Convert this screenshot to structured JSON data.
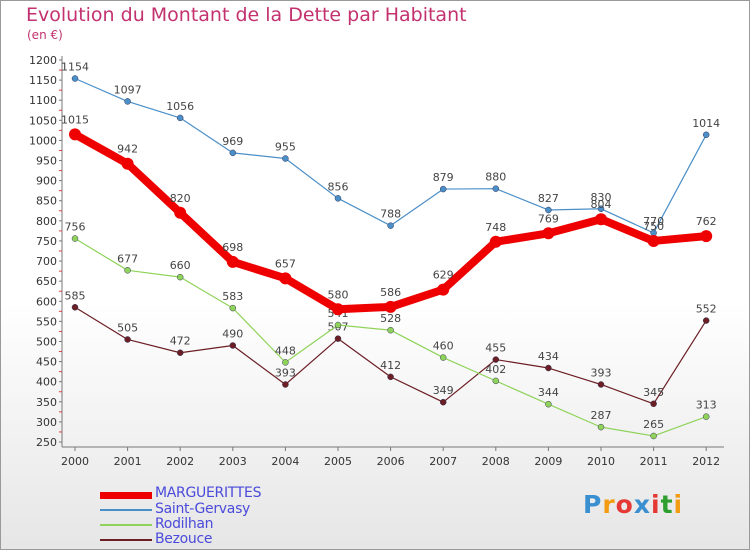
{
  "header": {
    "title": "Evolution du Montant de la Dette par Habitant",
    "unit": "(en €)"
  },
  "logo": {
    "text": "Proxiti",
    "colors": [
      "#3a8fd0",
      "#f39c12",
      "#e53935",
      "#3a8fd0",
      "#e53935",
      "#2e9e2e",
      "#f39c12"
    ]
  },
  "chart_data": {
    "type": "line",
    "title": "Evolution du Montant de la Dette par Habitant",
    "ylabel": "(en €)",
    "xlabel": "",
    "x": [
      "2000",
      "2001",
      "2002",
      "2003",
      "2004",
      "2005",
      "2006",
      "2007",
      "2008",
      "2009",
      "2010",
      "2011",
      "2012"
    ],
    "yticks": [
      250,
      300,
      350,
      400,
      450,
      500,
      550,
      600,
      650,
      700,
      750,
      800,
      850,
      900,
      950,
      1000,
      1050,
      1100,
      1150,
      1200
    ],
    "ylim": [
      250,
      1200
    ],
    "grid": false,
    "legend_position": "bottom-left",
    "series": [
      {
        "name": "MARGUERITTES",
        "color": "#ee0000",
        "values": [
          1015,
          942,
          820,
          698,
          657,
          580,
          586,
          629,
          748,
          769,
          804,
          750,
          762
        ]
      },
      {
        "name": "Saint-Gervasy",
        "color": "#4a8fc8",
        "values": [
          1154,
          1097,
          1056,
          969,
          955,
          856,
          788,
          879,
          880,
          827,
          830,
          770,
          1014
        ]
      },
      {
        "name": "Rodilhan",
        "color": "#8fd35a",
        "values": [
          756,
          677,
          660,
          583,
          448,
          541,
          528,
          460,
          402,
          344,
          287,
          265,
          313
        ]
      },
      {
        "name": "Bezouce",
        "color": "#6b1e24",
        "values": [
          585,
          505,
          472,
          490,
          393,
          507,
          412,
          349,
          455,
          434,
          393,
          345,
          552
        ]
      }
    ]
  }
}
